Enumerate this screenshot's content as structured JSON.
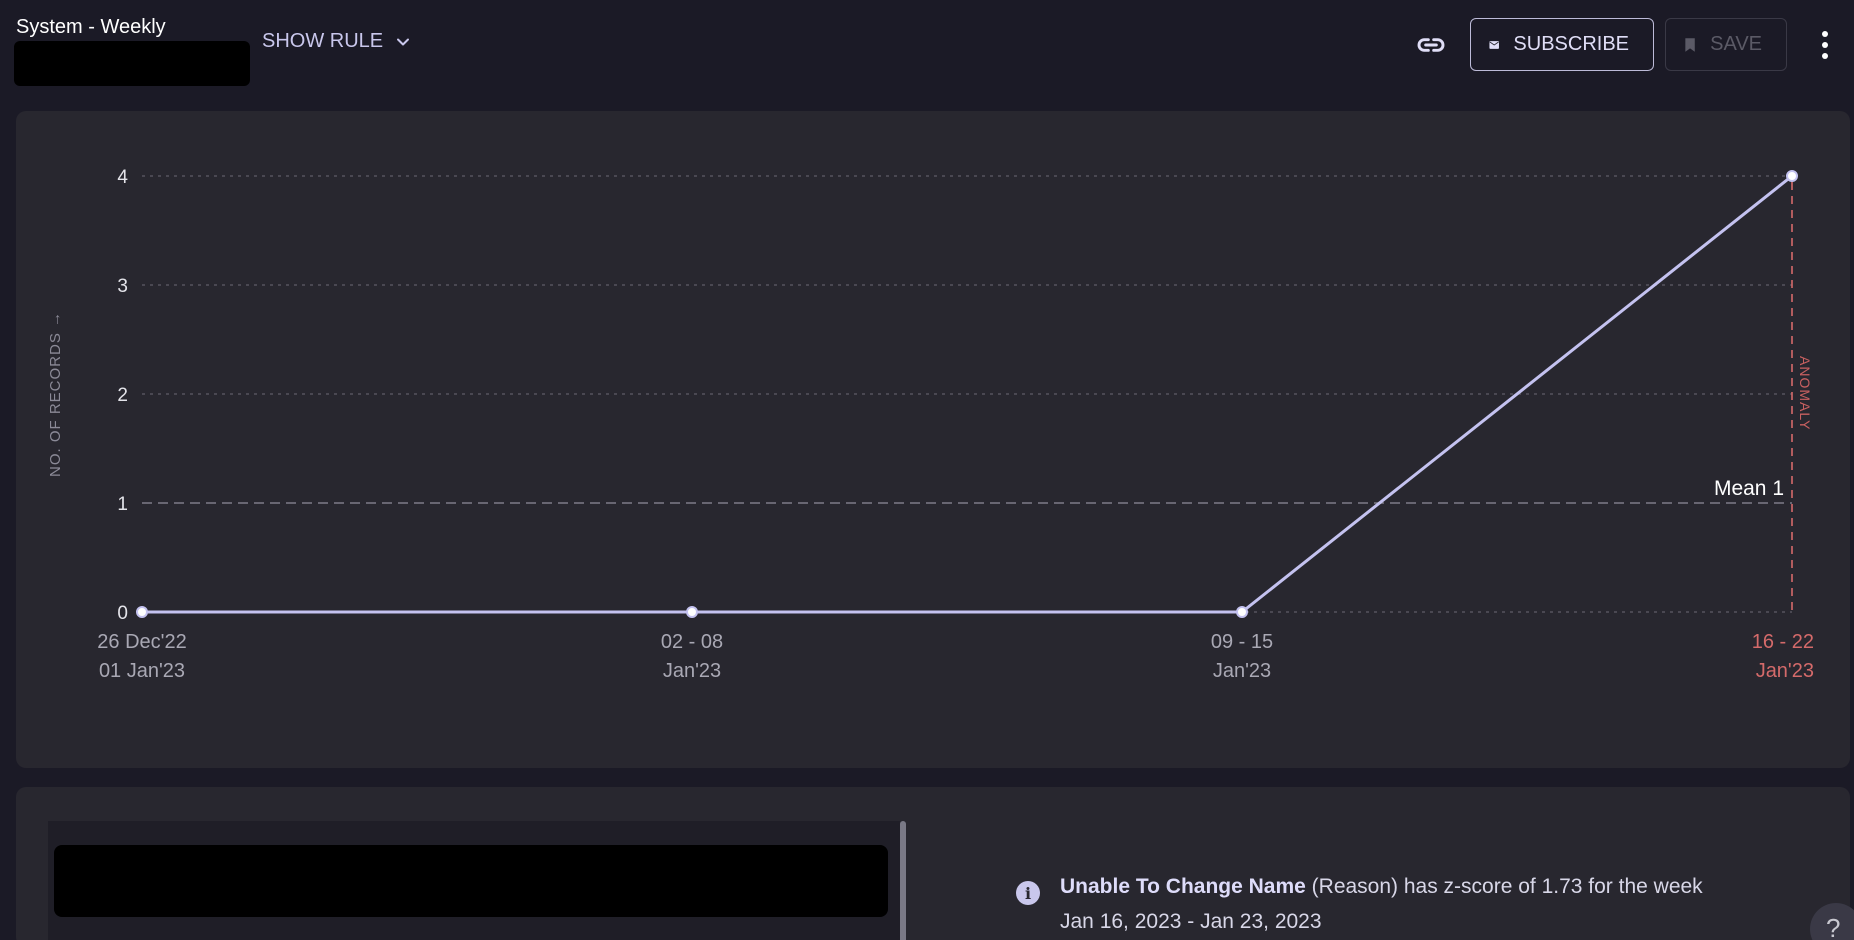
{
  "header": {
    "title": "System - Weekly",
    "show_rule_label": "SHOW RULE",
    "subscribe_label": "SUBSCRIBE",
    "save_label": "SAVE"
  },
  "chart_data": {
    "type": "line",
    "title": "",
    "ylabel": "NO. OF RECORDS →",
    "xlabel": "",
    "categories": [
      [
        "26 Dec'22",
        "01 Jan'23"
      ],
      [
        "02 - 08",
        "Jan'23"
      ],
      [
        "09 - 15",
        "Jan'23"
      ],
      [
        "16 - 22",
        "Jan'23"
      ]
    ],
    "series": [
      {
        "values": [
          0,
          0,
          0,
          4
        ]
      }
    ],
    "ylim": [
      0,
      4
    ],
    "yticks": [
      0,
      1,
      2,
      3,
      4
    ],
    "grid": true,
    "mean": {
      "label": "Mean 1",
      "value": 1
    },
    "anomaly": {
      "label": "ANOMALY",
      "category_index": 3
    },
    "colors": {
      "line": "#c4c2f0",
      "anomaly": "#d46a6a",
      "grid": "#55545f"
    }
  },
  "insight": {
    "bold": "Unable To Change Name",
    "rest": " (Reason) has z-score of 1.73 for the week",
    "range": "Jan 16, 2023 - Jan 23, 2023"
  },
  "help_label": "?"
}
